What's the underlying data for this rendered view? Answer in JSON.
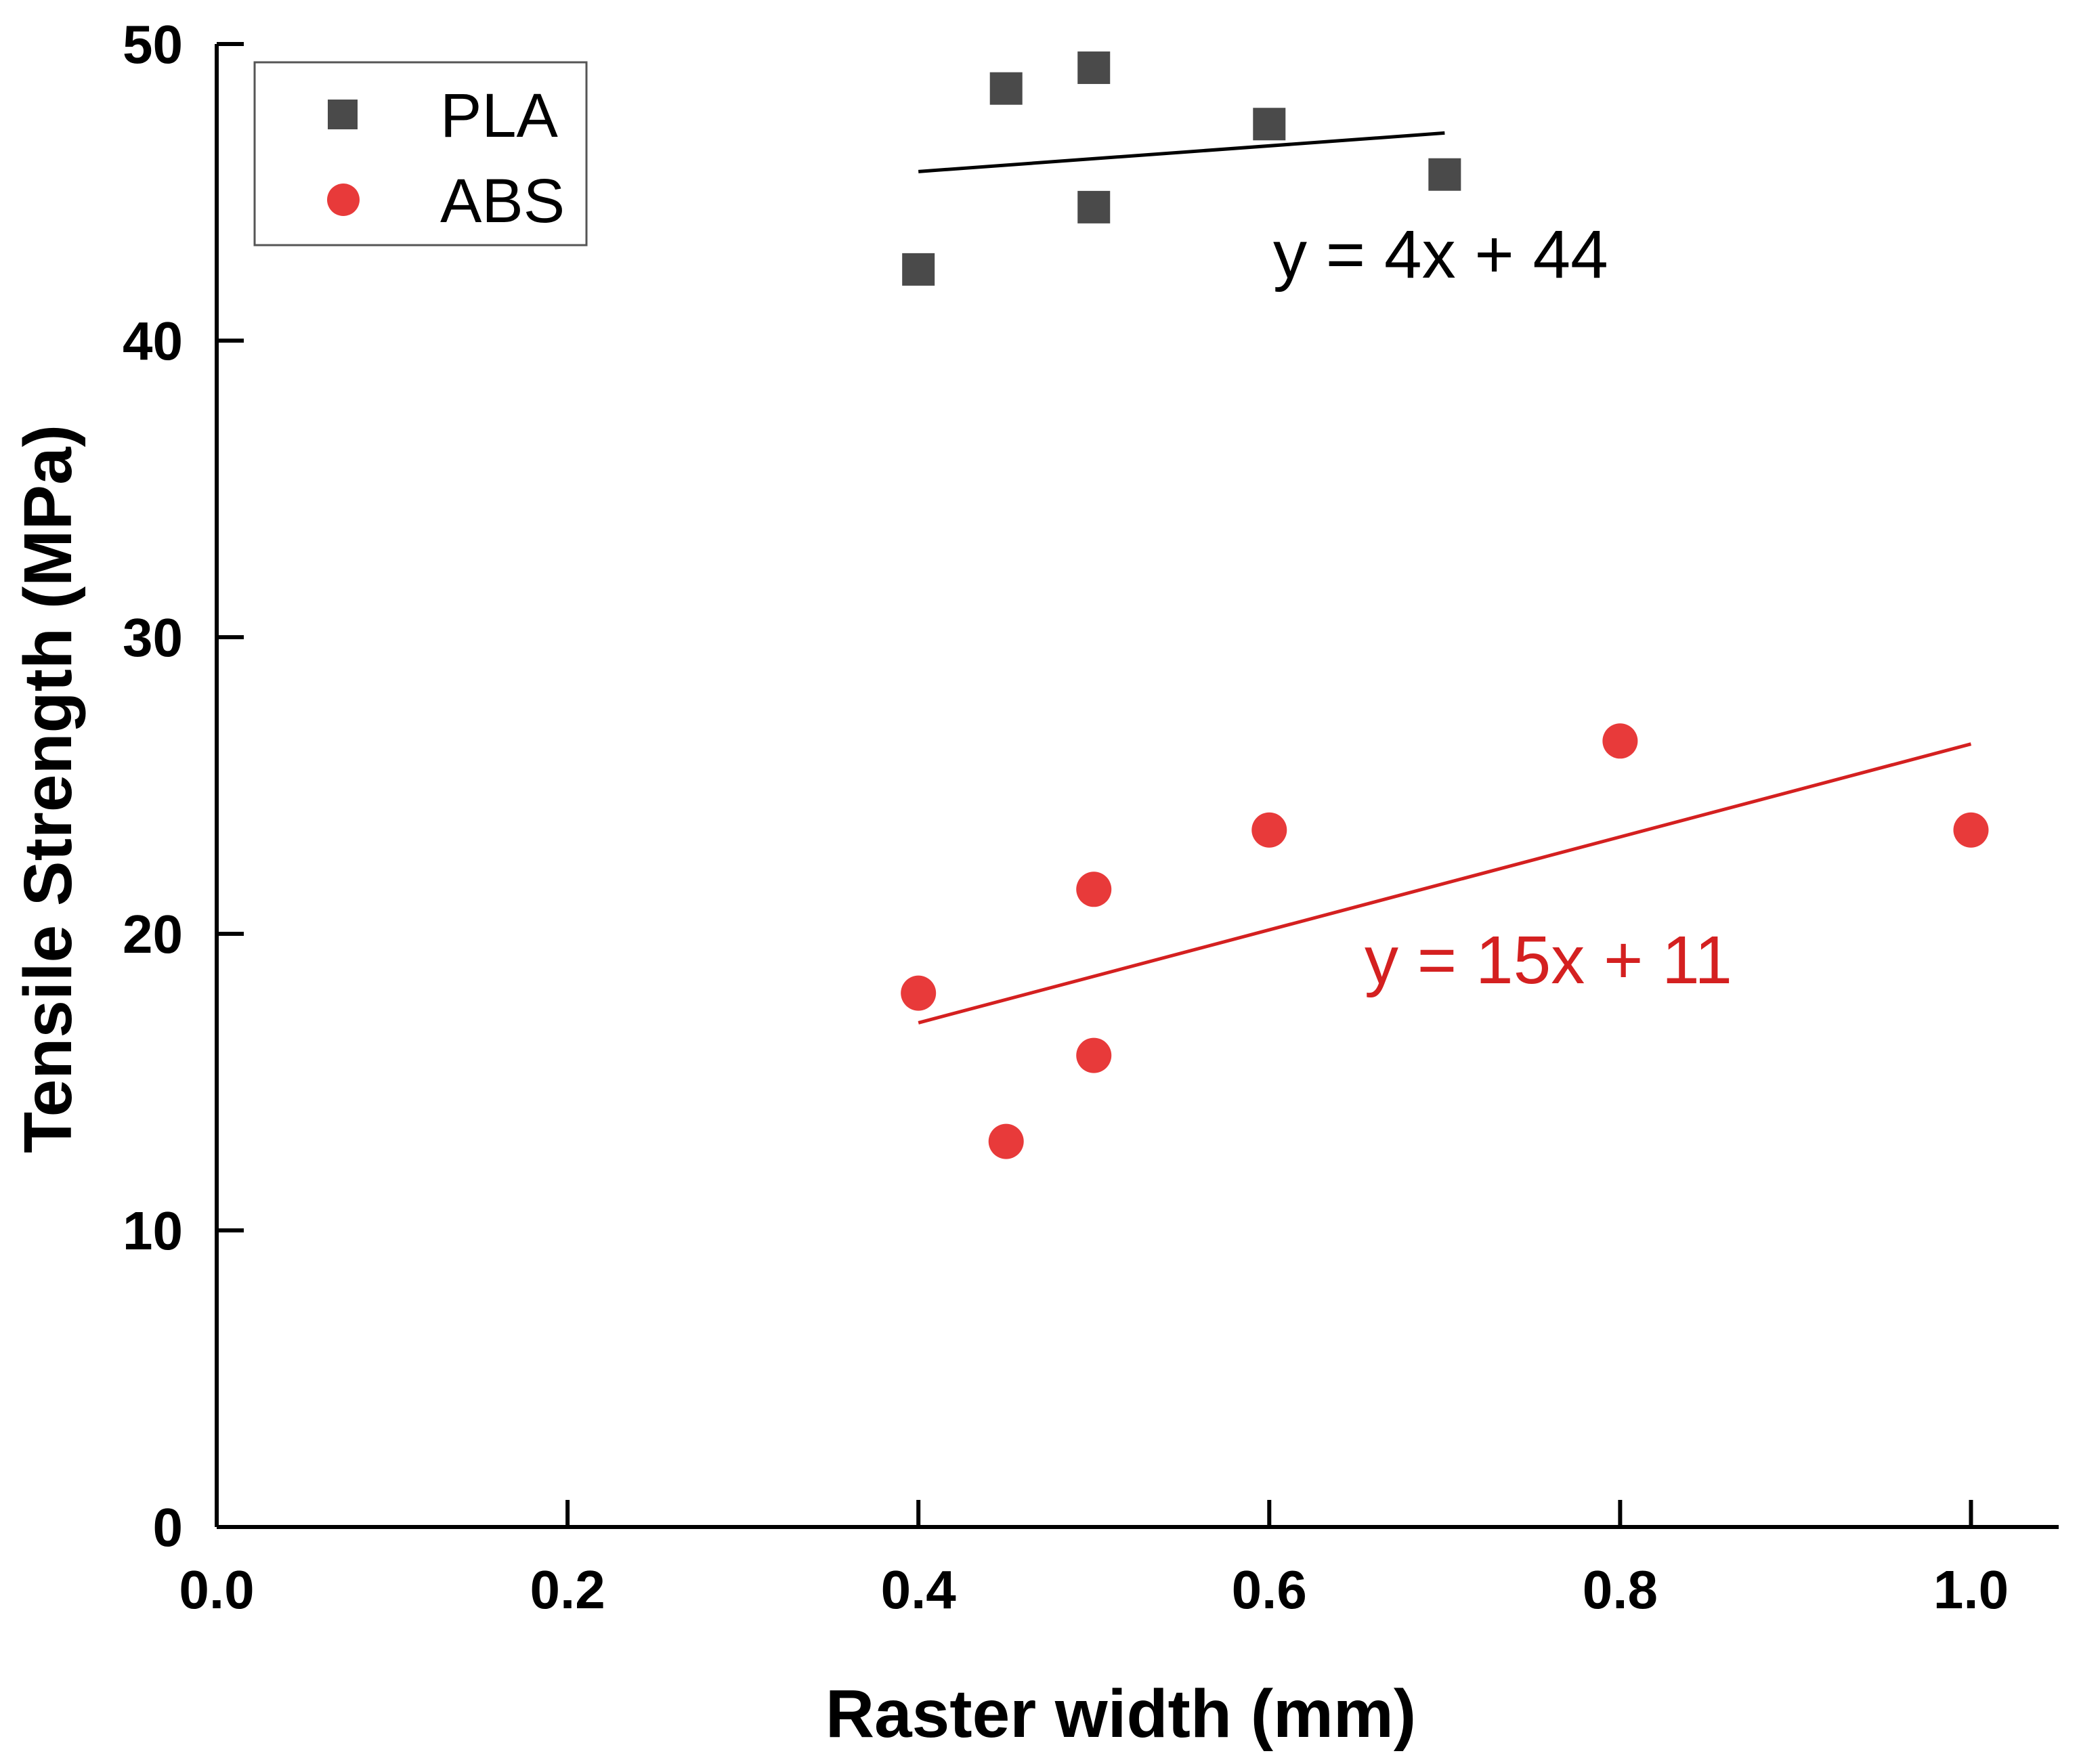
{
  "chart_data": {
    "type": "scatter",
    "title": "",
    "xlabel": "Raster width (mm)",
    "ylabel": "Tensile Strength (MPa)",
    "xlim": [
      0.0,
      1.05
    ],
    "ylim": [
      0,
      50
    ],
    "x_ticks": [
      0.0,
      0.2,
      0.4,
      0.6,
      0.8,
      1.0
    ],
    "x_tick_labels": [
      "0.0",
      "0.2",
      "0.4",
      "0.6",
      "0.8",
      "1.0"
    ],
    "y_ticks": [
      0,
      10,
      20,
      30,
      40,
      50
    ],
    "y_tick_labels": [
      "0",
      "10",
      "20",
      "30",
      "40",
      "50"
    ],
    "grid": false,
    "legend_position": "top-left",
    "series": [
      {
        "name": "PLA",
        "marker": "square",
        "color": "#4a4a4a",
        "points": [
          {
            "x": 0.4,
            "y": 42.4
          },
          {
            "x": 0.45,
            "y": 48.5
          },
          {
            "x": 0.5,
            "y": 49.2
          },
          {
            "x": 0.5,
            "y": 44.5
          },
          {
            "x": 0.6,
            "y": 47.3
          },
          {
            "x": 0.7,
            "y": 45.6
          }
        ],
        "fit": {
          "equation": "y = 4x + 44",
          "x_range": [
            0.4,
            0.7
          ],
          "y_range": [
            45.7,
            47.0
          ],
          "color": "#000000"
        }
      },
      {
        "name": "ABS",
        "marker": "circle",
        "color": "#e83a3a",
        "points": [
          {
            "x": 0.4,
            "y": 18.0
          },
          {
            "x": 0.45,
            "y": 13.0
          },
          {
            "x": 0.5,
            "y": 21.5
          },
          {
            "x": 0.5,
            "y": 15.9
          },
          {
            "x": 0.6,
            "y": 23.5
          },
          {
            "x": 0.8,
            "y": 26.5
          },
          {
            "x": 1.0,
            "y": 23.5
          }
        ],
        "fit": {
          "equation": "y = 15x + 11",
          "x_range": [
            0.4,
            1.0
          ],
          "y_range": [
            17.0,
            26.4
          ],
          "color": "#d42020"
        }
      }
    ]
  }
}
